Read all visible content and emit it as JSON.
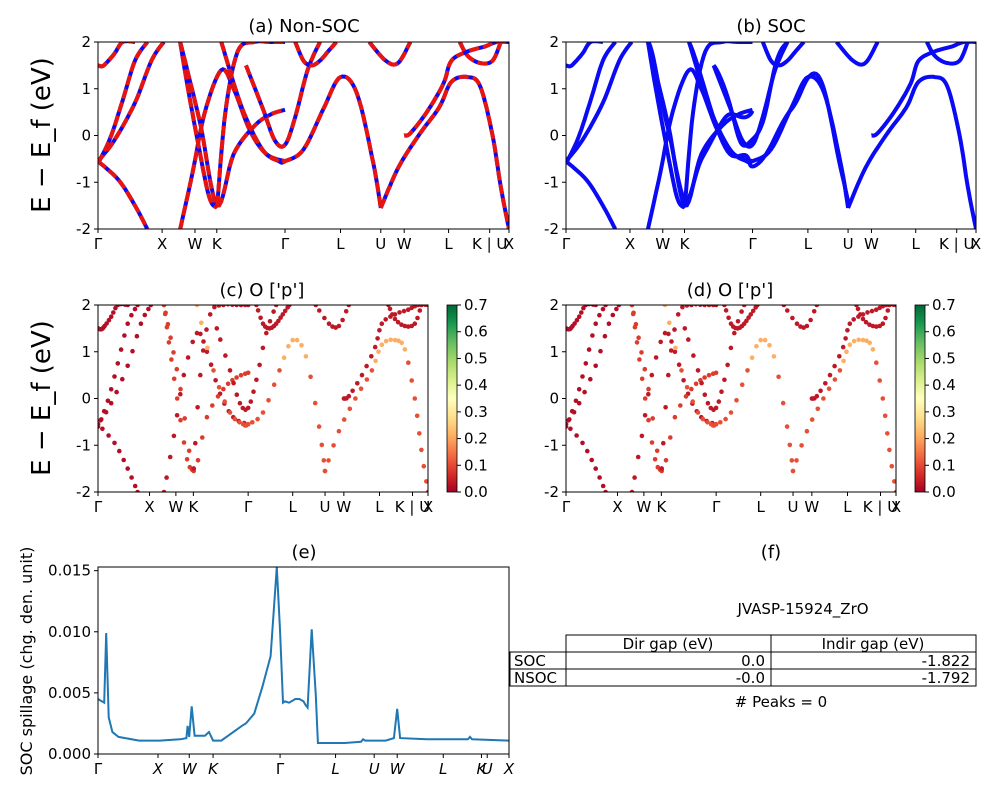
{
  "colors": {
    "red": "#e8150f",
    "blue": "#0a0af5",
    "line": "#1f77b4"
  },
  "labels": {
    "ylabel_top": "E − E_f (eV)",
    "ylabel_mid": "E − E_f (eV)",
    "ylabel_bottom": "SOC spillage (chg. den. unit)"
  },
  "kpath": {
    "labels_ab": [
      "Γ",
      "X",
      "W",
      "K",
      "Γ",
      "L",
      "U",
      "W",
      "L",
      "K | U",
      "X"
    ],
    "positions_ab": [
      0,
      0.156,
      0.236,
      0.289,
      0.455,
      0.59,
      0.688,
      0.745,
      0.853,
      0.953,
      1.0
    ],
    "labels_cd": [
      "Γ",
      "X",
      "W",
      "K",
      "Γ",
      "L",
      "U",
      "W",
      "L",
      "K | U",
      "X"
    ],
    "positions_cd": [
      0,
      0.156,
      0.236,
      0.289,
      0.455,
      0.59,
      0.688,
      0.745,
      0.853,
      0.953,
      1.0
    ],
    "labels_e": [
      "Γ",
      "X",
      "W",
      "K",
      "Γ",
      "L",
      "U",
      "W",
      "L",
      "K",
      "U",
      "X"
    ],
    "positions_e": [
      0,
      0.146,
      0.222,
      0.28,
      0.443,
      0.578,
      0.672,
      0.728,
      0.84,
      0.933,
      0.947,
      1.0
    ]
  },
  "chart_data": [
    {
      "id": "a",
      "type": "line",
      "title": "(a) Non-SOC",
      "ylim": [
        -2,
        2
      ],
      "yticks": [
        -2,
        -1,
        0,
        1,
        2
      ],
      "bands": [
        {
          "name": "b1",
          "x": [
            0,
            0.04,
            0.09,
            0.13,
            0.16
          ],
          "y": [
            -0.55,
            -0.1,
            0.7,
            1.6,
            2.0
          ]
        },
        {
          "name": "b2",
          "x": [
            0,
            0.01,
            0.02,
            0.04,
            0.06,
            0.09
          ],
          "y": [
            1.5,
            1.48,
            1.55,
            1.75,
            2.0,
            2.0
          ]
        },
        {
          "name": "b3",
          "x": [
            0,
            0.05,
            0.09,
            0.12
          ],
          "y": [
            -0.55,
            -0.95,
            -1.5,
            -2.0
          ]
        },
        {
          "name": "b4",
          "x": [
            0,
            0.03,
            0.06,
            0.09,
            0.12
          ],
          "y": [
            -0.6,
            -0.05,
            0.75,
            1.6,
            2.0
          ]
        },
        {
          "name": "b5",
          "x": [
            0.2,
            0.23,
            0.26,
            0.3,
            0.33,
            0.37,
            0.41,
            0.455
          ],
          "y": [
            -2.0,
            -0.8,
            0.5,
            1.4,
            1.0,
            0.1,
            -0.4,
            -0.55
          ]
        },
        {
          "name": "b6",
          "x": [
            0.2,
            0.215,
            0.24,
            0.27,
            0.29
          ],
          "y": [
            2.0,
            1.2,
            0.0,
            -1.3,
            -1.55
          ]
        },
        {
          "name": "b7",
          "x": [
            0.2,
            0.22,
            0.25,
            0.29,
            0.33,
            0.38,
            0.42,
            0.455
          ],
          "y": [
            2.0,
            1.3,
            0.2,
            -1.5,
            -0.4,
            0.2,
            0.45,
            0.55
          ]
        },
        {
          "name": "b8",
          "x": [
            0.29,
            0.31,
            0.34,
            0.38,
            0.42,
            0.455
          ],
          "y": [
            -1.5,
            0.5,
            1.8,
            2.0,
            2.0,
            2.0
          ]
        },
        {
          "name": "b9",
          "x": [
            0.36,
            0.4,
            0.43,
            0.455,
            0.48,
            0.51,
            0.54
          ],
          "y": [
            1.5,
            0.6,
            -0.1,
            -0.2,
            0.4,
            1.4,
            2.0
          ]
        },
        {
          "name": "b10",
          "x": [
            0.3,
            0.35,
            0.4,
            0.44,
            0.455,
            0.5,
            0.55,
            0.59,
            0.63,
            0.67,
            0.688
          ],
          "y": [
            2.0,
            0.6,
            -0.3,
            -0.55,
            -0.55,
            -0.3,
            0.6,
            1.25,
            0.9,
            -0.6,
            -1.55
          ]
        },
        {
          "name": "b11",
          "x": [
            0.688,
            0.73,
            0.78,
            0.83,
            0.86,
            0.9,
            0.93,
            0.96,
            0.98,
            1.0
          ],
          "y": [
            -1.55,
            -0.7,
            0.0,
            0.6,
            1.15,
            1.25,
            1.05,
            0.0,
            -1.1,
            -2.0
          ]
        },
        {
          "name": "b12",
          "x": [
            0.48,
            0.5,
            0.52,
            0.54,
            0.56,
            0.58
          ],
          "y": [
            2.0,
            1.6,
            1.5,
            1.6,
            1.8,
            2.0
          ]
        },
        {
          "name": "b13",
          "x": [
            0.745,
            0.76,
            0.8,
            0.84,
            0.86,
            0.9,
            0.94,
            0.97,
            1.0
          ],
          "y": [
            0.0,
            0.05,
            0.5,
            1.1,
            1.6,
            1.8,
            1.9,
            2.0,
            2.0
          ]
        },
        {
          "name": "b14",
          "x": [
            0.66,
            0.7,
            0.73,
            0.76
          ],
          "y": [
            2.0,
            1.6,
            1.55,
            2.0
          ]
        },
        {
          "name": "b15",
          "x": [
            0.88,
            0.9,
            0.93,
            0.96,
            0.98
          ],
          "y": [
            2.0,
            1.7,
            1.55,
            1.6,
            2.0
          ]
        }
      ]
    },
    {
      "id": "b",
      "type": "line",
      "title": "(b) SOC",
      "ylim": [
        -2,
        2
      ],
      "yticks": [
        -2,
        -1,
        0,
        1,
        2
      ]
    },
    {
      "id": "c",
      "type": "scatter",
      "title": "(c)  O ['p']",
      "ylim": [
        -2,
        2
      ],
      "yticks": [
        -2,
        -1,
        0,
        1,
        2
      ],
      "colorbar": {
        "ticks": [
          0.0,
          0.1,
          0.2,
          0.3,
          0.4,
          0.5,
          0.6,
          0.7
        ],
        "range": [
          0,
          0.7
        ]
      }
    },
    {
      "id": "d",
      "type": "scatter",
      "title": "(d) O ['p']",
      "ylim": [
        -2,
        2
      ],
      "yticks": [
        -2,
        -1,
        0,
        1,
        2
      ],
      "colorbar": {
        "ticks": [
          0.0,
          0.1,
          0.2,
          0.3,
          0.4,
          0.5,
          0.6,
          0.7
        ],
        "range": [
          0,
          0.7
        ]
      }
    },
    {
      "id": "e",
      "type": "line",
      "title": "(e)",
      "ylim": [
        0,
        0.0153
      ],
      "yticks": [
        "0.000",
        "0.005",
        "0.010",
        "0.015"
      ],
      "ytick_values": [
        0,
        0.005,
        0.01,
        0.015
      ],
      "x": [
        0,
        0.015,
        0.02,
        0.026,
        0.035,
        0.05,
        0.1,
        0.15,
        0.2,
        0.215,
        0.218,
        0.222,
        0.228,
        0.235,
        0.26,
        0.27,
        0.28,
        0.3,
        0.35,
        0.36,
        0.38,
        0.4,
        0.42,
        0.435,
        0.443,
        0.45,
        0.455,
        0.465,
        0.48,
        0.49,
        0.5,
        0.505,
        0.51,
        0.52,
        0.53,
        0.535,
        0.6,
        0.64,
        0.645,
        0.65,
        0.7,
        0.72,
        0.728,
        0.735,
        0.8,
        0.9,
        0.905,
        0.91,
        1.0
      ],
      "values": [
        0.0045,
        0.0042,
        0.0099,
        0.003,
        0.0018,
        0.0014,
        0.0011,
        0.0011,
        0.0012,
        0.0013,
        0.0023,
        0.0014,
        0.0039,
        0.0015,
        0.0015,
        0.0018,
        0.0011,
        0.0011,
        0.0023,
        0.0025,
        0.0033,
        0.0055,
        0.008,
        0.0153,
        0.01,
        0.0042,
        0.0043,
        0.0042,
        0.0045,
        0.0045,
        0.0043,
        0.004,
        0.0038,
        0.0102,
        0.0048,
        0.0009,
        0.0009,
        0.001,
        0.0012,
        0.0011,
        0.0011,
        0.0013,
        0.0037,
        0.0013,
        0.0012,
        0.0012,
        0.0014,
        0.0012,
        0.0011
      ]
    },
    {
      "id": "f",
      "type": "table",
      "title": "(f)",
      "subtitle": "JVASP-15924_ZrO",
      "columns": [
        "Dir gap (eV)",
        "Indir gap (eV)"
      ],
      "rows": [
        {
          "label": "SOC",
          "values": [
            "0.0",
            "-1.822"
          ]
        },
        {
          "label": "NSOC",
          "values": [
            "-0.0",
            "-1.792"
          ]
        }
      ],
      "footer": "# Peaks = 0"
    }
  ]
}
